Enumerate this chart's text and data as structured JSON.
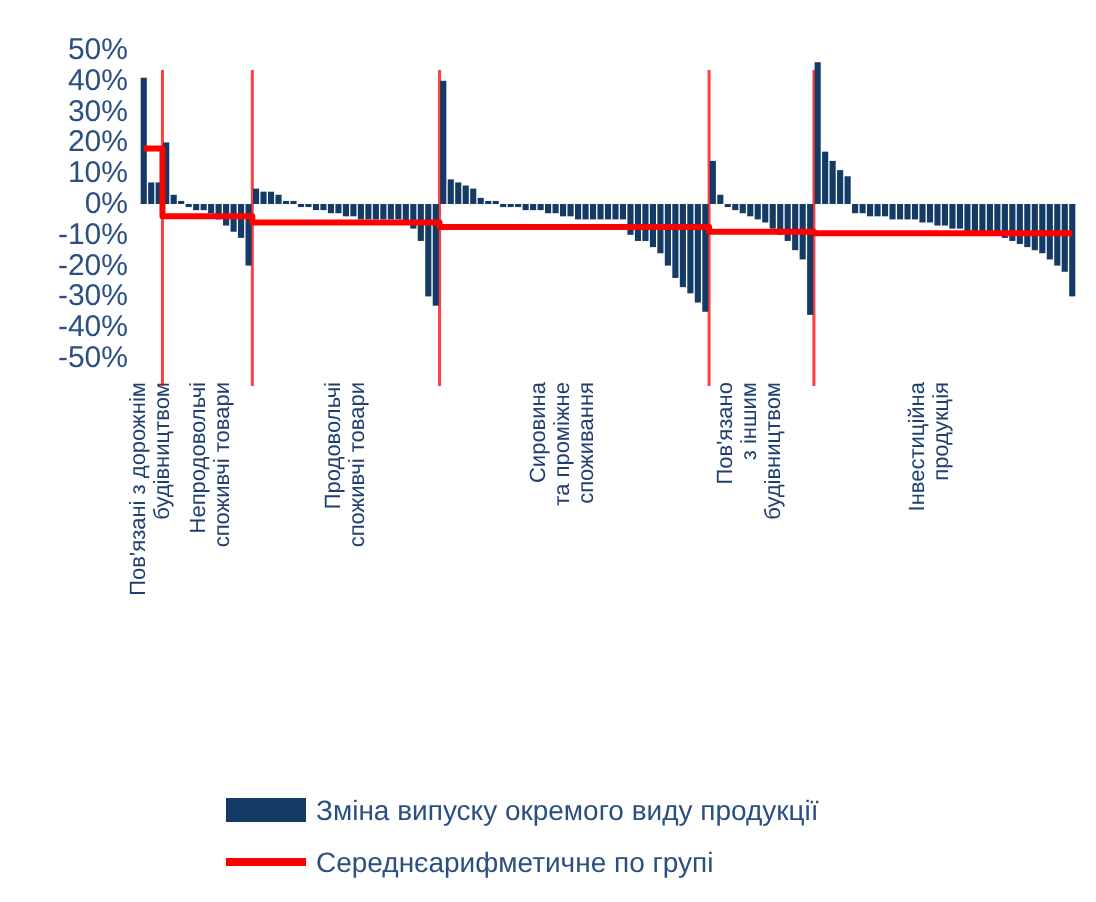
{
  "chart_data": {
    "type": "bar",
    "categories": [
      null,
      "Пов'язані з дорожнім\nбудівництвом",
      null,
      null,
      null,
      null,
      null,
      null,
      null,
      "Непродовольчі\nспоживчі товари",
      null,
      null,
      null,
      null,
      null,
      null,
      null,
      null,
      null,
      null,
      null,
      null,
      null,
      null,
      null,
      null,
      null,
      "Продовольчі\nспоживчі товари",
      null,
      null,
      null,
      null,
      null,
      null,
      null,
      null,
      null,
      null,
      null,
      null,
      null,
      null,
      null,
      null,
      null,
      null,
      null,
      null,
      null,
      null,
      null,
      null,
      null,
      null,
      null,
      null,
      "Сировина\nта проміжне\nспоживання",
      null,
      null,
      null,
      null,
      null,
      null,
      null,
      null,
      null,
      null,
      null,
      null,
      null,
      null,
      null,
      null,
      null,
      null,
      null,
      null,
      null,
      null,
      null,
      null,
      "Пов'язано\nз іншим\nбудівництвом",
      null,
      null,
      null,
      null,
      null,
      null,
      null,
      null,
      null,
      null,
      null,
      null,
      null,
      null,
      null,
      null,
      null,
      null,
      null,
      null,
      null,
      null,
      null,
      "Інвестиційна\nпродукція",
      null,
      null,
      null,
      null,
      null,
      null,
      null,
      null,
      null,
      null,
      null,
      null,
      null,
      null,
      null,
      null,
      null,
      null,
      null
    ],
    "series": [
      {
        "name": "Зміна випуску окремого виду продукції",
        "color": "#143a66",
        "values": [
          41,
          7,
          7,
          20,
          3,
          1,
          -1,
          -2,
          -2,
          -3,
          -5,
          -7,
          -9,
          -11,
          -20,
          5,
          4,
          4,
          3,
          1,
          1,
          -1,
          -1,
          -2,
          -2,
          -3,
          -3,
          -4,
          -4,
          -5,
          -5,
          -5,
          -5,
          -5,
          -5,
          -6,
          -8,
          -12,
          -30,
          -33,
          40,
          8,
          7,
          6,
          5,
          2,
          1,
          1,
          -1,
          -1,
          -1,
          -2,
          -2,
          -2,
          -3,
          -3,
          -4,
          -4,
          -5,
          -5,
          -5,
          -5,
          -5,
          -5,
          -5,
          -10,
          -12,
          -12,
          -14,
          -16,
          -20,
          -24,
          -27,
          -29,
          -32,
          -35,
          14,
          3,
          -1,
          -2,
          -3,
          -4,
          -5,
          -6,
          -8,
          -10,
          -12,
          -15,
          -18,
          -36,
          46,
          17,
          14,
          11,
          9,
          -3,
          -3,
          -4,
          -4,
          -4,
          -5,
          -5,
          -5,
          -5,
          -6,
          -6,
          -7,
          -7,
          -8,
          -8,
          -9,
          -9,
          -10,
          -10,
          -10,
          -11,
          -12,
          -13,
          -14,
          -15,
          -16,
          -18,
          -20,
          -22,
          -30
        ]
      },
      {
        "name": "Середнєарифметичне по групі",
        "type": "step",
        "color": "#ff0000",
        "values": [
          18,
          18,
          18,
          -4,
          -4,
          -4,
          -4,
          -4,
          -4,
          -4,
          -4,
          -4,
          -4,
          -4,
          -4,
          -6,
          -6,
          -6,
          -6,
          -6,
          -6,
          -6,
          -6,
          -6,
          -6,
          -6,
          -6,
          -6,
          -6,
          -6,
          -6,
          -6,
          -6,
          -6,
          -6,
          -6,
          -6,
          -6,
          -6,
          -6,
          -7.5,
          -7.5,
          -7.5,
          -7.5,
          -7.5,
          -7.5,
          -7.5,
          -7.5,
          -7.5,
          -7.5,
          -7.5,
          -7.5,
          -7.5,
          -7.5,
          -7.5,
          -7.5,
          -7.5,
          -7.5,
          -7.5,
          -7.5,
          -7.5,
          -7.5,
          -7.5,
          -7.5,
          -7.5,
          -7.5,
          -7.5,
          -7.5,
          -7.5,
          -7.5,
          -7.5,
          -7.5,
          -7.5,
          -7.5,
          -7.5,
          -7.5,
          -9,
          -9,
          -9,
          -9,
          -9,
          -9,
          -9,
          -9,
          -9,
          -9,
          -9,
          -9,
          -9,
          -9,
          -9.5,
          -9.5,
          -9.5,
          -9.5,
          -9.5,
          -9.5,
          -9.5,
          -9.5,
          -9.5,
          -9.5,
          -9.5,
          -9.5,
          -9.5,
          -9.5,
          -9.5,
          -9.5,
          -9.5,
          -9.5,
          -9.5,
          -9.5,
          -9.5,
          -9.5,
          -9.5,
          -9.5,
          -9.5,
          -9.5,
          -9.5,
          -9.5,
          -9.5,
          -9.5,
          -9.5,
          -9.5,
          -9.5,
          -9.5,
          -9.5
        ]
      }
    ],
    "ylim": [
      -50,
      50
    ],
    "yticks": [
      {
        "value": 50,
        "label": "50%"
      },
      {
        "value": 40,
        "label": "40%"
      },
      {
        "value": 30,
        "label": "30%"
      },
      {
        "value": 20,
        "label": "20%"
      },
      {
        "value": 10,
        "label": "10%"
      },
      {
        "value": 0,
        "label": "0%"
      },
      {
        "value": -10,
        "label": "-10%"
      },
      {
        "value": -20,
        "label": "-20%"
      },
      {
        "value": -30,
        "label": "-30%"
      },
      {
        "value": -40,
        "label": "-40%"
      },
      {
        "value": -50,
        "label": "-50%"
      }
    ],
    "grid": false,
    "legend": "bottom"
  }
}
